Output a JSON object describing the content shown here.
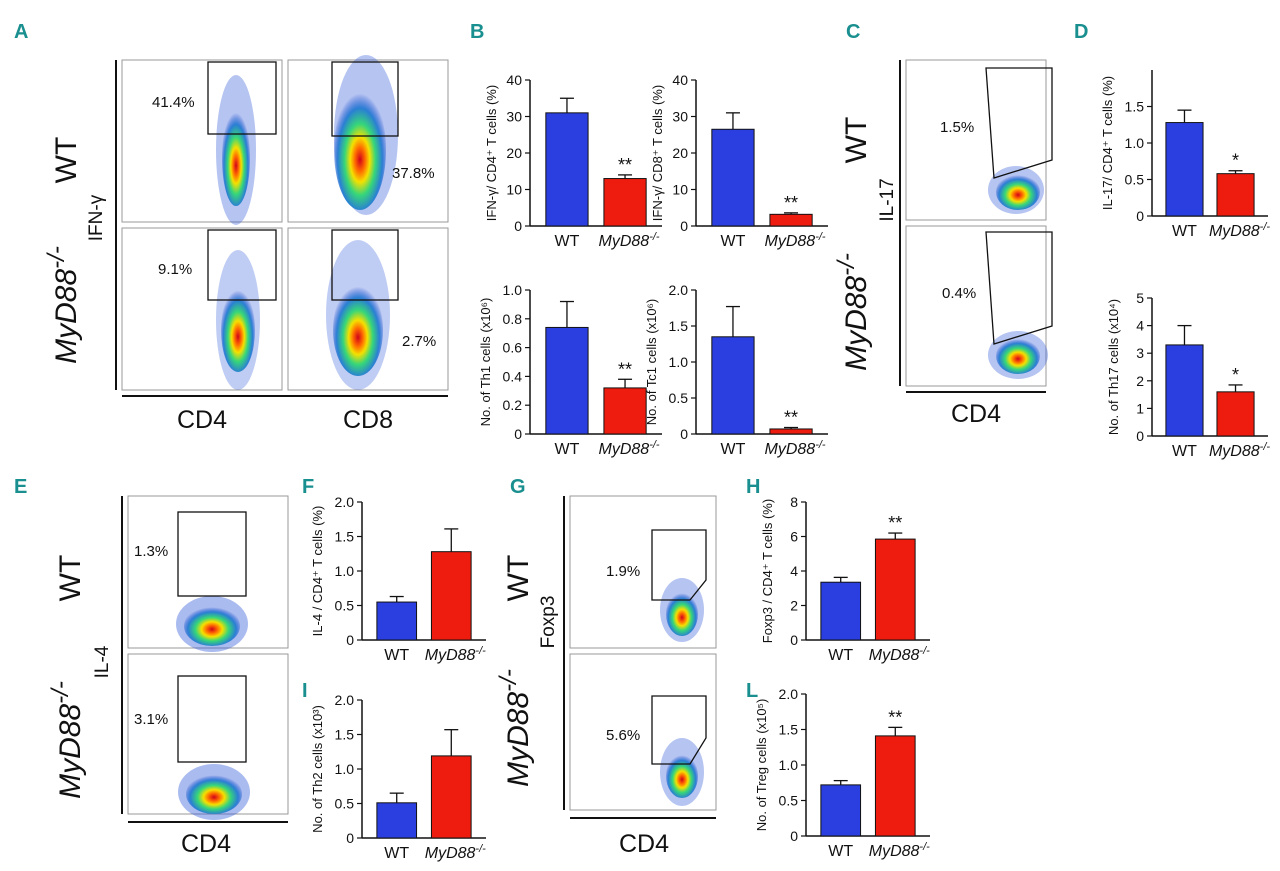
{
  "panels": {
    "a": "A",
    "b": "B",
    "c": "C",
    "d": "D",
    "e": "E",
    "f": "F",
    "g": "G",
    "h": "H",
    "i": "I",
    "l": "L"
  },
  "flow_a": {
    "group_wt": "WT",
    "group_ko": "MyD88",
    "group_ko_sup": "-/-",
    "ylabel": "IFN-γ",
    "pct_wt_cd4": "41.4%",
    "pct_wt_cd8": "37.8%",
    "pct_ko_cd4": "9.1%",
    "pct_ko_cd8": "2.7%",
    "xlabel1": "CD4",
    "xlabel2": "CD8"
  },
  "flow_c": {
    "group_wt": "WT",
    "group_ko": "MyD88",
    "group_ko_sup": "-/-",
    "ylabel": "IL-17",
    "pct_wt": "1.5%",
    "pct_ko": "0.4%",
    "xlabel": "CD4"
  },
  "flow_e": {
    "group_wt": "WT",
    "group_ko": "MyD88",
    "group_ko_sup": "-/-",
    "ylabel": "IL-4",
    "pct_wt": "1.3%",
    "pct_ko": "3.1%",
    "xlabel": "CD4"
  },
  "flow_g": {
    "group_wt": "WT",
    "group_ko": "MyD88",
    "group_ko_sup": "-/-",
    "ylabel": "Foxp3",
    "pct_wt": "1.9%",
    "pct_ko": "5.6%",
    "xlabel": "CD4"
  },
  "colors": {
    "wt": "#2b3fe0",
    "ko": "#ee1c0e"
  },
  "chart_data": [
    {
      "id": "b1",
      "type": "bar",
      "ylabel": "IFN-γ/ CD4⁺ T cells (%)",
      "categories": [
        "WT",
        "MyD88"
      ],
      "cat_sup": "-/-",
      "values": [
        31,
        13
      ],
      "errors": [
        4,
        1
      ],
      "sig": "**",
      "ylim": [
        0,
        40
      ],
      "ticks": [
        "0",
        "10",
        "20",
        "30",
        "40"
      ]
    },
    {
      "id": "b2",
      "type": "bar",
      "ylabel": "IFN-γ/ CD8⁺ T cells (%)",
      "categories": [
        "WT",
        "MyD88"
      ],
      "cat_sup": "-/-",
      "values": [
        26.5,
        3.2
      ],
      "errors": [
        4.5,
        0.4
      ],
      "sig": "**",
      "ylim": [
        0,
        40
      ],
      "ticks": [
        "0",
        "10",
        "20",
        "30",
        "40"
      ]
    },
    {
      "id": "b3",
      "type": "bar",
      "ylabel": "No. of Th1 cells (x10⁶)",
      "categories": [
        "WT",
        "MyD88"
      ],
      "cat_sup": "-/-",
      "values": [
        0.74,
        0.32
      ],
      "errors": [
        0.18,
        0.06
      ],
      "sig": "**",
      "ylim": [
        0,
        1.0
      ],
      "ticks": [
        "0",
        "0.2",
        "0.4",
        "0.6",
        "0.8",
        "1.0"
      ]
    },
    {
      "id": "b4",
      "type": "bar",
      "ylabel": "No. of Tc1 cells (x10⁶)",
      "categories": [
        "WT",
        "MyD88"
      ],
      "cat_sup": "-/-",
      "values": [
        1.35,
        0.07
      ],
      "errors": [
        0.42,
        0.02
      ],
      "sig": "**",
      "ylim": [
        0,
        2.0
      ],
      "ticks": [
        "0",
        "0.5",
        "1.0",
        "1.5",
        "2.0"
      ]
    },
    {
      "id": "d1",
      "type": "bar",
      "ylabel": "IL-17/ CD4⁺ T cells (%)",
      "categories": [
        "WT",
        "MyD88"
      ],
      "cat_sup": "-/-",
      "values": [
        1.28,
        0.58
      ],
      "errors": [
        0.17,
        0.04
      ],
      "sig": "*",
      "ylim": [
        0,
        2.0
      ],
      "ticks": [
        "0",
        "0.5",
        "1.0",
        "1.5"
      ]
    },
    {
      "id": "d2",
      "type": "bar",
      "ylabel": "No. of Th17 cells (x10⁴)",
      "categories": [
        "WT",
        "MyD88"
      ],
      "cat_sup": "-/-",
      "values": [
        3.3,
        1.6
      ],
      "errors": [
        0.7,
        0.25
      ],
      "sig": "*",
      "ylim": [
        0,
        5
      ],
      "ticks": [
        "0",
        "1",
        "2",
        "3",
        "4",
        "5"
      ]
    },
    {
      "id": "f",
      "type": "bar",
      "ylabel": "IL-4 / CD4⁺ T cells (%)",
      "categories": [
        "WT",
        "MyD88"
      ],
      "cat_sup": "-/-",
      "values": [
        0.55,
        1.28
      ],
      "errors": [
        0.08,
        0.33
      ],
      "sig": "",
      "ylim": [
        0,
        2.0
      ],
      "ticks": [
        "0",
        "0.5",
        "1.0",
        "1.5",
        "2.0"
      ]
    },
    {
      "id": "i",
      "type": "bar",
      "ylabel": "No. of Th2 cells (x10³)",
      "categories": [
        "WT",
        "MyD88"
      ],
      "cat_sup": "-/-",
      "values": [
        0.51,
        1.19
      ],
      "errors": [
        0.14,
        0.38
      ],
      "sig": "",
      "ylim": [
        0,
        2.0
      ],
      "ticks": [
        "0",
        "0.5",
        "1.0",
        "1.5",
        "2.0"
      ]
    },
    {
      "id": "h",
      "type": "bar",
      "ylabel": "Foxp3 / CD4⁺ T cells (%)",
      "categories": [
        "WT",
        "MyD88"
      ],
      "cat_sup": "-/-",
      "values": [
        3.35,
        5.85
      ],
      "errors": [
        0.28,
        0.35
      ],
      "sig": "**",
      "ylim": [
        0,
        8
      ],
      "ticks": [
        "0",
        "2",
        "4",
        "6",
        "8"
      ]
    },
    {
      "id": "l",
      "type": "bar",
      "ylabel": "No. of Treg cells (x10⁵)",
      "categories": [
        "WT",
        "MyD88"
      ],
      "cat_sup": "-/-",
      "values": [
        0.72,
        1.41
      ],
      "errors": [
        0.06,
        0.12
      ],
      "sig": "**",
      "ylim": [
        0,
        2.0
      ],
      "ticks": [
        "0",
        "0.5",
        "1.0",
        "1.5",
        "2.0"
      ]
    }
  ]
}
